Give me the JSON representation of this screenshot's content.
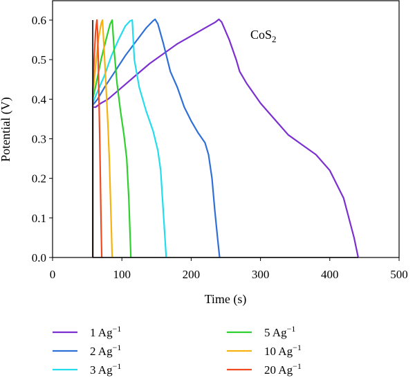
{
  "chart_data": {
    "type": "line",
    "xlabel": "Time (s)",
    "ylabel": "Potential (V)",
    "xlim": [
      0,
      500
    ],
    "ylim": [
      0,
      0.6
    ],
    "xticks": [
      0,
      100,
      200,
      300,
      400,
      500
    ],
    "yticks": [
      0.0,
      0.1,
      0.2,
      0.3,
      0.4,
      0.5,
      0.6
    ],
    "annotation": {
      "base": "CoS",
      "sub": "2"
    },
    "legend_position": "bottom",
    "series": [
      {
        "name": "1 Ag",
        "sup": "−1",
        "color": "#7b2fd0",
        "x": [
          58,
          58,
          62,
          70,
          80,
          100,
          120,
          140,
          160,
          180,
          200,
          220,
          235,
          240,
          244,
          255,
          265,
          270,
          280,
          300,
          320,
          340,
          360,
          380,
          400,
          420,
          435,
          441
        ],
        "y": [
          0,
          0.38,
          0.38,
          0.39,
          0.4,
          0.43,
          0.46,
          0.49,
          0.515,
          0.54,
          0.56,
          0.58,
          0.595,
          0.602,
          0.595,
          0.55,
          0.5,
          0.47,
          0.44,
          0.39,
          0.35,
          0.31,
          0.285,
          0.26,
          0.22,
          0.15,
          0.05,
          0.0
        ]
      },
      {
        "name": "2 Ag",
        "sup": "−1",
        "color": "#2f6fd8",
        "x": [
          58,
          58,
          65,
          75,
          90,
          105,
          120,
          135,
          145,
          148,
          152,
          160,
          170,
          180,
          190,
          200,
          210,
          220,
          225,
          230,
          234,
          238,
          241
        ],
        "y": [
          0,
          0.385,
          0.4,
          0.43,
          0.47,
          0.51,
          0.545,
          0.58,
          0.598,
          0.602,
          0.59,
          0.54,
          0.47,
          0.43,
          0.38,
          0.345,
          0.315,
          0.29,
          0.26,
          0.2,
          0.12,
          0.05,
          0.0
        ]
      },
      {
        "name": "3 Ag",
        "sup": "−1",
        "color": "#22ddee",
        "x": [
          58,
          58,
          65,
          75,
          85,
          95,
          105,
          112,
          115,
          118,
          125,
          135,
          145,
          152,
          156,
          160,
          164
        ],
        "y": [
          0,
          0.39,
          0.42,
          0.46,
          0.51,
          0.55,
          0.585,
          0.598,
          0.6,
          0.5,
          0.43,
          0.37,
          0.32,
          0.27,
          0.22,
          0.11,
          0.0
        ]
      },
      {
        "name": "5 Ag",
        "sup": "−1",
        "color": "#2ed02e",
        "x": [
          58,
          58,
          63,
          70,
          77,
          83,
          86,
          89,
          93,
          98,
          103,
          107,
          110,
          113
        ],
        "y": [
          0,
          0.4,
          0.44,
          0.5,
          0.55,
          0.59,
          0.6,
          0.52,
          0.44,
          0.37,
          0.31,
          0.25,
          0.15,
          0.0
        ]
      },
      {
        "name": "10 Ag",
        "sup": "−1",
        "color": "#f5b210",
        "x": [
          58,
          58,
          62,
          66,
          70,
          72,
          74,
          76,
          78,
          80,
          82,
          84,
          86
        ],
        "y": [
          0,
          0.41,
          0.48,
          0.55,
          0.59,
          0.6,
          0.54,
          0.47,
          0.4,
          0.33,
          0.24,
          0.12,
          0.0
        ]
      },
      {
        "name": "20 Ag",
        "sup": "−1",
        "color": "#ef4a20",
        "x": [
          58,
          58,
          60,
          62,
          64,
          65,
          66,
          67,
          68,
          69,
          70,
          71
        ],
        "y": [
          0,
          0.42,
          0.5,
          0.57,
          0.6,
          0.57,
          0.49,
          0.4,
          0.31,
          0.2,
          0.09,
          0.0
        ]
      }
    ]
  }
}
